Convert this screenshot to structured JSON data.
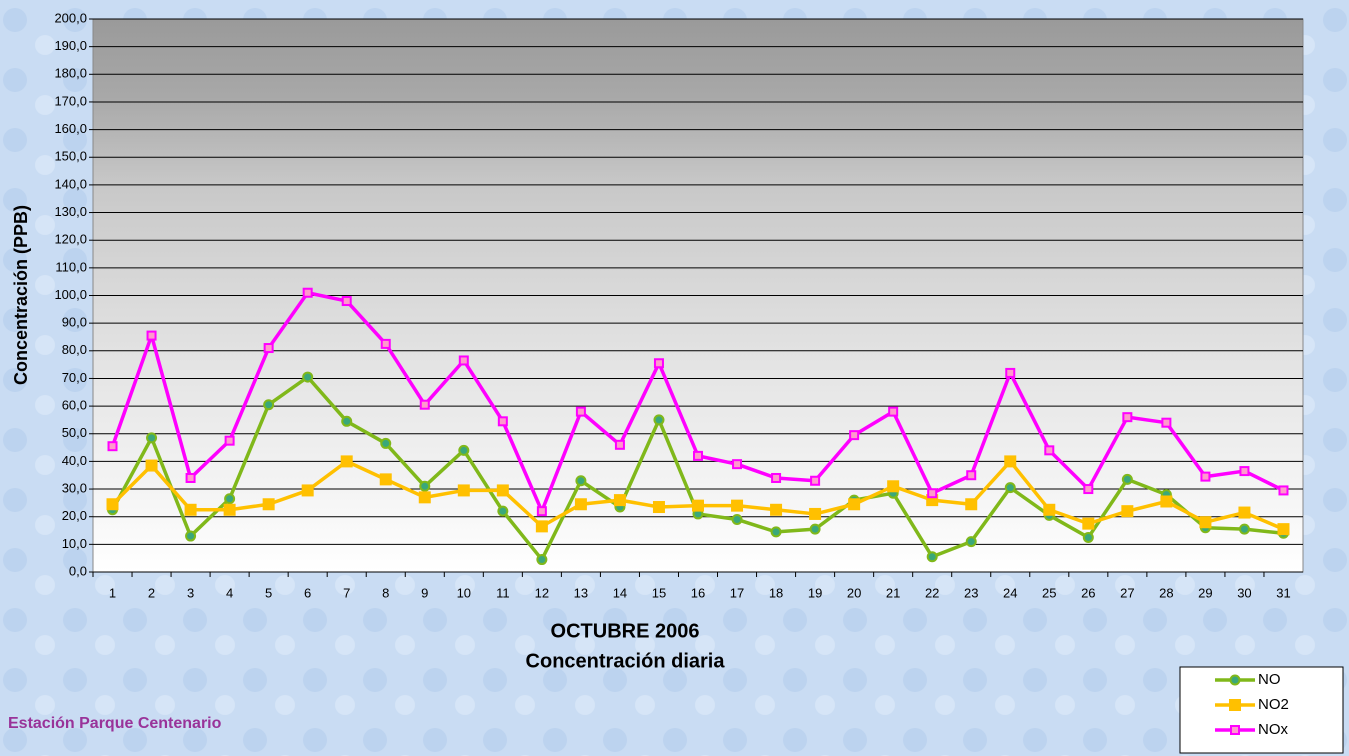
{
  "chart_data": {
    "type": "line",
    "y_label": "Concentración  (PPB)",
    "x_label": "OCTUBRE 2006",
    "subtitle": "Concentración diaria",
    "note": "Estación Parque Centenario",
    "categories": [
      "1",
      "2",
      "3",
      "4",
      "5",
      "6",
      "7",
      "8",
      "9",
      "10",
      "11",
      "12",
      "13",
      "14",
      "15",
      "16",
      "17",
      "18",
      "19",
      "20",
      "21",
      "22",
      "23",
      "24",
      "25",
      "26",
      "27",
      "28",
      "29",
      "30",
      "31"
    ],
    "series": [
      {
        "name": "NO",
        "color": "#80b81a",
        "marker": "circle",
        "values": [
          22.5,
          48.5,
          13,
          26.5,
          60.5,
          70.5,
          54.5,
          46.5,
          31,
          44,
          22,
          4.5,
          33,
          23.5,
          55,
          21,
          19,
          14.5,
          15.5,
          26,
          28.5,
          5.5,
          11,
          30.5,
          20.5,
          12.5,
          33.5,
          28,
          16,
          15.5,
          14
        ]
      },
      {
        "name": "NO2",
        "color": "#ffc000",
        "marker": "square",
        "values": [
          24.5,
          38.5,
          22.5,
          22.5,
          24.5,
          29.5,
          40,
          33.5,
          27,
          29.5,
          29.5,
          16.5,
          24.5,
          26,
          23.5,
          24,
          24,
          22.5,
          21,
          24.5,
          31,
          26,
          24.5,
          40,
          22.5,
          17.5,
          22,
          25.5,
          18,
          21.5,
          15.5
        ]
      },
      {
        "name": "NOx",
        "color": "#ff00ff",
        "marker": "square",
        "values": [
          45.5,
          85.5,
          34,
          47.5,
          81,
          101,
          98,
          82.5,
          60.5,
          76.5,
          54.5,
          22,
          58,
          46,
          75.5,
          42,
          39,
          34,
          33,
          49.5,
          58,
          28.5,
          35,
          72,
          44,
          30,
          56,
          54,
          34.5,
          36.5,
          29.5
        ]
      }
    ],
    "ylim": [
      0,
      200
    ],
    "yticks": [
      {
        "value": 0,
        "label": "0,0"
      },
      {
        "value": 10,
        "label": "10,0"
      },
      {
        "value": 20,
        "label": "20,0"
      },
      {
        "value": 30,
        "label": "30,0"
      },
      {
        "value": 40,
        "label": "40,0"
      },
      {
        "value": 50,
        "label": "50,0"
      },
      {
        "value": 60,
        "label": "60,0"
      },
      {
        "value": 70,
        "label": "70,0"
      },
      {
        "value": 80,
        "label": "80,0"
      },
      {
        "value": 90,
        "label": "90,0"
      },
      {
        "value": 100,
        "label": "100,0"
      },
      {
        "value": 110,
        "label": "110,0"
      },
      {
        "value": 120,
        "label": "120,0"
      },
      {
        "value": 130,
        "label": "130,0"
      },
      {
        "value": 140,
        "label": "140,0"
      },
      {
        "value": 150,
        "label": "150,0"
      },
      {
        "value": 160,
        "label": "160,0"
      },
      {
        "value": 170,
        "label": "170,0"
      },
      {
        "value": 180,
        "label": "180,0"
      },
      {
        "value": 190,
        "label": "190,0"
      },
      {
        "value": 200,
        "label": "200,0"
      }
    ],
    "grid": true,
    "legend": "bottom-right"
  }
}
